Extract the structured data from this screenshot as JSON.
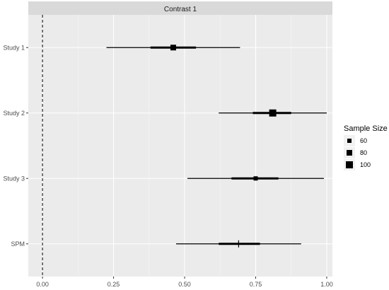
{
  "chart_data": {
    "type": "forest",
    "facet_label": "Contrast 1",
    "xlim": [
      -0.05,
      1.02
    ],
    "x_ticks": [
      0.0,
      0.25,
      0.5,
      0.75,
      1.0
    ],
    "x_tick_labels": [
      "0.00",
      "0.25",
      "0.50",
      "0.75",
      "1.00"
    ],
    "reference_line_x": 0,
    "grid": true,
    "legend": {
      "title": "Sample Size",
      "placement": "right",
      "entries": [
        {
          "label": "60",
          "size": 60
        },
        {
          "label": "80",
          "size": 80
        },
        {
          "label": "100",
          "size": 100
        }
      ]
    },
    "rows": [
      {
        "label": "Study 1",
        "estimate": 0.46,
        "ci_low": 0.225,
        "ci_high": 0.695,
        "inner_low": 0.38,
        "inner_high": 0.54,
        "sample_size": 80,
        "marker": "square"
      },
      {
        "label": "Study 2",
        "estimate": 0.81,
        "ci_low": 0.62,
        "ci_high": 1.0,
        "inner_low": 0.74,
        "inner_high": 0.875,
        "sample_size": 100,
        "marker": "square"
      },
      {
        "label": "Study 3",
        "estimate": 0.75,
        "ci_low": 0.51,
        "ci_high": 0.99,
        "inner_low": 0.665,
        "inner_high": 0.83,
        "sample_size": 60,
        "marker": "square"
      },
      {
        "label": "SPM",
        "estimate": 0.69,
        "ci_low": 0.47,
        "ci_high": 0.91,
        "inner_low": 0.62,
        "inner_high": 0.765,
        "sample_size": null,
        "marker": "cross"
      }
    ]
  }
}
